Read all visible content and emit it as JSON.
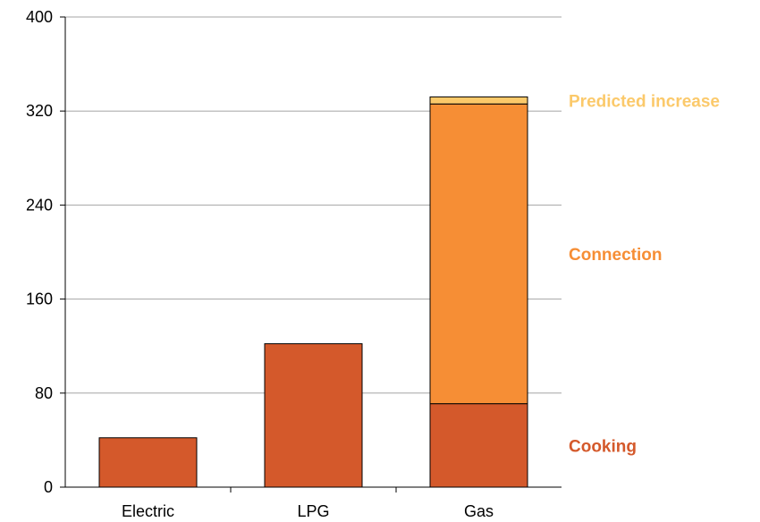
{
  "chart_data": {
    "type": "bar",
    "stacked": true,
    "categories": [
      "Electric",
      "LPG",
      "Gas"
    ],
    "series": [
      {
        "name": "Cooking",
        "values": [
          42,
          122,
          71
        ],
        "color": "#D4592B"
      },
      {
        "name": "Connection",
        "values": [
          0,
          0,
          255
        ],
        "color": "#F68E35"
      },
      {
        "name": "Predicted increase",
        "values": [
          0,
          0,
          6
        ],
        "color": "#FBC96A"
      }
    ],
    "yticks": [
      "0",
      "80",
      "160",
      "240",
      "320",
      "400"
    ],
    "ylim": [
      0,
      400
    ],
    "grid": true,
    "legend": "right, labels aligned with the Gas bar segments"
  }
}
